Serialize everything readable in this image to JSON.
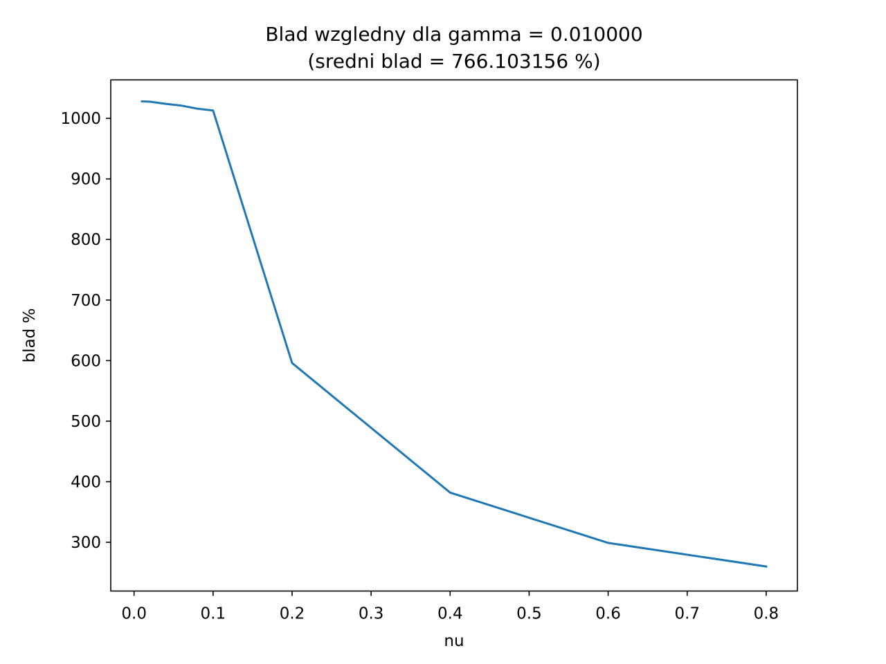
{
  "chart_data": {
    "type": "line",
    "title": "Blad wzgledny dla gamma = 0.010000",
    "subtitle": "(sredni blad = 766.103156 %)",
    "xlabel": "nu",
    "ylabel": "blad %",
    "xlim": [
      -0.0295,
      0.8395
    ],
    "ylim": [
      219.5,
      1063.5
    ],
    "xticks": [
      "0.0",
      "0.1",
      "0.2",
      "0.3",
      "0.4",
      "0.5",
      "0.6",
      "0.7",
      "0.8"
    ],
    "yticks": [
      "300",
      "400",
      "500",
      "600",
      "700",
      "800",
      "900",
      "1000"
    ],
    "grid": false,
    "series": [
      {
        "color": "#1f77b4",
        "x": [
          0.01,
          0.02,
          0.04,
          0.06,
          0.08,
          0.1,
          0.2,
          0.4,
          0.6,
          0.8
        ],
        "y": [
          1028,
          1027.5,
          1024,
          1021,
          1016,
          1013,
          596,
          382,
          299,
          260
        ]
      }
    ]
  }
}
